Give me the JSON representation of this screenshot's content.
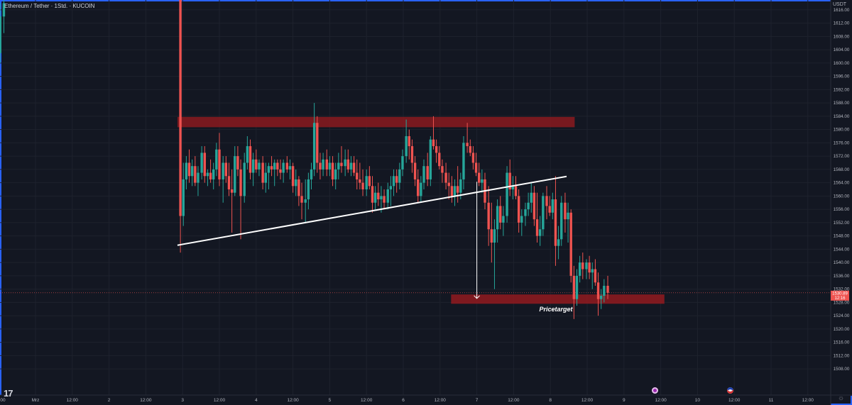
{
  "header": {
    "symbol_title": "Ethereum / Tether · 1Std. · KUCOIN",
    "currency_label": "USDT"
  },
  "price_axis": {
    "ticks": [
      "1616.00",
      "1612.00",
      "1608.00",
      "1604.00",
      "1600.00",
      "1596.00",
      "1592.00",
      "1588.00",
      "1584.00",
      "1580.00",
      "1576.00",
      "1572.00",
      "1568.00",
      "1564.00",
      "1560.00",
      "1556.00",
      "1552.00",
      "1548.00",
      "1544.00",
      "1540.00",
      "1536.00",
      "1532.00",
      "1528.00",
      "1524.00",
      "1520.00",
      "1516.00",
      "1512.00",
      "1508.00"
    ],
    "last_price_label": "1530.89",
    "countdown_label": "12:16"
  },
  "time_axis": {
    "ticks": [
      "00",
      "Mrz",
      "12:00",
      "2",
      "12:00",
      "3",
      "12:00",
      "4",
      "12:00",
      "5",
      "12:00",
      "6",
      "12:00",
      "7",
      "12:00",
      "8",
      "12:00",
      "9",
      "12:00",
      "10",
      "12:00",
      "11",
      "12:00"
    ]
  },
  "annotations": {
    "price_target_label": "Pricetarget"
  },
  "colors": {
    "background": "#131722",
    "grid": "#1e222d",
    "up": "#26a69a",
    "down": "#ef5350",
    "zone": "#8b1a1f",
    "trendline": "#ffffff"
  },
  "icons": {
    "logo": "tradingview-logo-icon",
    "indicator_a": "lightning-circle-icon",
    "indicator_b": "flag-circle-icon",
    "settings": "gear-icon"
  },
  "chart_data": {
    "type": "candlestick",
    "symbol": "ETHUSDT",
    "interval": "1h",
    "ylim": [
      1505,
      1619
    ],
    "resistance_zone": [
      1580.7,
      1583.8
    ],
    "target_zone": [
      1527.6,
      1530.4
    ],
    "trendline": [
      [
        2.93,
        1545.2
      ],
      [
        8.22,
        1565.9
      ]
    ],
    "projection": [
      [
        7.0,
        1564.3
      ],
      [
        7.0,
        1529.2
      ]
    ],
    "last_price": 1530.89,
    "candles": [
      {
        "t": 0.4,
        "o": 1605,
        "h": 1618,
        "l": 1597,
        "c": 1617
      },
      {
        "t": 0.44,
        "o": 1617,
        "h": 1619,
        "l": 1600,
        "c": 1605
      },
      {
        "t": 0.48,
        "o": 1611,
        "h": 1616,
        "l": 1596,
        "c": 1603
      },
      {
        "t": 0.52,
        "o": 1603,
        "h": 1618,
        "l": 1600,
        "c": 1614
      },
      {
        "t": 0.57,
        "o": 1614,
        "h": 1619,
        "l": 1609,
        "c": 1618
      },
      {
        "t": 2.97,
        "o": 1623,
        "h": 1625,
        "l": 1543,
        "c": 1554
      },
      {
        "t": 3.01,
        "o": 1554,
        "h": 1570,
        "l": 1551,
        "c": 1565
      },
      {
        "t": 3.05,
        "o": 1565,
        "h": 1572,
        "l": 1562,
        "c": 1570
      },
      {
        "t": 3.09,
        "o": 1570,
        "h": 1574,
        "l": 1564,
        "c": 1566
      },
      {
        "t": 3.13,
        "o": 1566,
        "h": 1571,
        "l": 1563,
        "c": 1569
      },
      {
        "t": 3.17,
        "o": 1569,
        "h": 1572,
        "l": 1563,
        "c": 1564
      },
      {
        "t": 3.21,
        "o": 1564,
        "h": 1569,
        "l": 1560,
        "c": 1567
      },
      {
        "t": 3.26,
        "o": 1567,
        "h": 1575,
        "l": 1565,
        "c": 1573
      },
      {
        "t": 3.3,
        "o": 1573,
        "h": 1575,
        "l": 1564,
        "c": 1566
      },
      {
        "t": 3.34,
        "o": 1566,
        "h": 1568,
        "l": 1563,
        "c": 1567
      },
      {
        "t": 3.38,
        "o": 1567,
        "h": 1571,
        "l": 1564,
        "c": 1565
      },
      {
        "t": 3.42,
        "o": 1565,
        "h": 1570,
        "l": 1562,
        "c": 1568
      },
      {
        "t": 3.46,
        "o": 1568,
        "h": 1576,
        "l": 1566,
        "c": 1574
      },
      {
        "t": 3.5,
        "o": 1574,
        "h": 1579,
        "l": 1563,
        "c": 1565
      },
      {
        "t": 3.55,
        "o": 1565,
        "h": 1572,
        "l": 1558,
        "c": 1570
      },
      {
        "t": 3.59,
        "o": 1570,
        "h": 1572,
        "l": 1564,
        "c": 1566
      },
      {
        "t": 3.63,
        "o": 1566,
        "h": 1570,
        "l": 1560,
        "c": 1562
      },
      {
        "t": 3.67,
        "o": 1562,
        "h": 1568,
        "l": 1549,
        "c": 1561
      },
      {
        "t": 3.71,
        "o": 1561,
        "h": 1575,
        "l": 1560,
        "c": 1572
      },
      {
        "t": 3.75,
        "o": 1572,
        "h": 1575,
        "l": 1566,
        "c": 1568
      },
      {
        "t": 3.79,
        "o": 1568,
        "h": 1571,
        "l": 1547,
        "c": 1560
      },
      {
        "t": 3.84,
        "o": 1560,
        "h": 1573,
        "l": 1558,
        "c": 1570
      },
      {
        "t": 3.88,
        "o": 1570,
        "h": 1578,
        "l": 1568,
        "c": 1575
      },
      {
        "t": 3.92,
        "o": 1575,
        "h": 1577,
        "l": 1565,
        "c": 1567
      },
      {
        "t": 3.96,
        "o": 1567,
        "h": 1573,
        "l": 1563,
        "c": 1571
      },
      {
        "t": 4.0,
        "o": 1571,
        "h": 1574,
        "l": 1567,
        "c": 1568
      },
      {
        "t": 4.04,
        "o": 1568,
        "h": 1571,
        "l": 1566,
        "c": 1570
      },
      {
        "t": 4.09,
        "o": 1570,
        "h": 1572,
        "l": 1562,
        "c": 1564
      },
      {
        "t": 4.13,
        "o": 1564,
        "h": 1570,
        "l": 1561,
        "c": 1567
      },
      {
        "t": 4.17,
        "o": 1567,
        "h": 1570,
        "l": 1562,
        "c": 1569
      },
      {
        "t": 4.21,
        "o": 1569,
        "h": 1572,
        "l": 1566,
        "c": 1568
      },
      {
        "t": 4.25,
        "o": 1568,
        "h": 1571,
        "l": 1563,
        "c": 1570
      },
      {
        "t": 4.29,
        "o": 1570,
        "h": 1571,
        "l": 1566,
        "c": 1568
      },
      {
        "t": 4.33,
        "o": 1568,
        "h": 1571,
        "l": 1565,
        "c": 1567
      },
      {
        "t": 4.37,
        "o": 1567,
        "h": 1571,
        "l": 1564,
        "c": 1570
      },
      {
        "t": 4.42,
        "o": 1570,
        "h": 1572,
        "l": 1567,
        "c": 1568
      },
      {
        "t": 4.46,
        "o": 1568,
        "h": 1571,
        "l": 1565,
        "c": 1569
      },
      {
        "t": 4.5,
        "o": 1569,
        "h": 1570,
        "l": 1561,
        "c": 1563
      },
      {
        "t": 4.54,
        "o": 1563,
        "h": 1568,
        "l": 1560,
        "c": 1565
      },
      {
        "t": 4.58,
        "o": 1565,
        "h": 1566,
        "l": 1557,
        "c": 1560
      },
      {
        "t": 4.62,
        "o": 1560,
        "h": 1564,
        "l": 1553,
        "c": 1558
      },
      {
        "t": 4.67,
        "o": 1558,
        "h": 1565,
        "l": 1552,
        "c": 1559
      },
      {
        "t": 4.71,
        "o": 1559,
        "h": 1567,
        "l": 1556,
        "c": 1565
      },
      {
        "t": 4.75,
        "o": 1565,
        "h": 1570,
        "l": 1562,
        "c": 1568
      },
      {
        "t": 4.79,
        "o": 1568,
        "h": 1588,
        "l": 1566,
        "c": 1582
      },
      {
        "t": 4.83,
        "o": 1582,
        "h": 1584,
        "l": 1567,
        "c": 1570
      },
      {
        "t": 4.87,
        "o": 1570,
        "h": 1573,
        "l": 1565,
        "c": 1568
      },
      {
        "t": 4.91,
        "o": 1568,
        "h": 1573,
        "l": 1566,
        "c": 1571
      },
      {
        "t": 4.96,
        "o": 1571,
        "h": 1574,
        "l": 1566,
        "c": 1568
      },
      {
        "t": 5.0,
        "o": 1568,
        "h": 1572,
        "l": 1566,
        "c": 1570
      },
      {
        "t": 5.04,
        "o": 1570,
        "h": 1572,
        "l": 1563,
        "c": 1565
      },
      {
        "t": 5.08,
        "o": 1565,
        "h": 1570,
        "l": 1562,
        "c": 1568
      },
      {
        "t": 5.12,
        "o": 1568,
        "h": 1573,
        "l": 1565,
        "c": 1570
      },
      {
        "t": 5.16,
        "o": 1570,
        "h": 1575,
        "l": 1567,
        "c": 1569
      },
      {
        "t": 5.21,
        "o": 1569,
        "h": 1574,
        "l": 1566,
        "c": 1571
      },
      {
        "t": 5.25,
        "o": 1571,
        "h": 1574,
        "l": 1567,
        "c": 1568
      },
      {
        "t": 5.29,
        "o": 1568,
        "h": 1572,
        "l": 1566,
        "c": 1570
      },
      {
        "t": 5.33,
        "o": 1570,
        "h": 1572,
        "l": 1566,
        "c": 1567
      },
      {
        "t": 5.37,
        "o": 1567,
        "h": 1571,
        "l": 1562,
        "c": 1565
      },
      {
        "t": 5.41,
        "o": 1565,
        "h": 1570,
        "l": 1562,
        "c": 1564
      },
      {
        "t": 5.45,
        "o": 1564,
        "h": 1568,
        "l": 1560,
        "c": 1562
      },
      {
        "t": 5.5,
        "o": 1562,
        "h": 1568,
        "l": 1560,
        "c": 1566
      },
      {
        "t": 5.54,
        "o": 1566,
        "h": 1569,
        "l": 1562,
        "c": 1563
      },
      {
        "t": 5.58,
        "o": 1563,
        "h": 1566,
        "l": 1555,
        "c": 1558
      },
      {
        "t": 5.62,
        "o": 1558,
        "h": 1563,
        "l": 1556,
        "c": 1561
      },
      {
        "t": 5.66,
        "o": 1561,
        "h": 1564,
        "l": 1557,
        "c": 1559
      },
      {
        "t": 5.7,
        "o": 1559,
        "h": 1563,
        "l": 1555,
        "c": 1560
      },
      {
        "t": 5.74,
        "o": 1560,
        "h": 1562,
        "l": 1556,
        "c": 1558
      },
      {
        "t": 5.79,
        "o": 1558,
        "h": 1564,
        "l": 1556,
        "c": 1562
      },
      {
        "t": 5.83,
        "o": 1562,
        "h": 1566,
        "l": 1557,
        "c": 1563
      },
      {
        "t": 5.87,
        "o": 1563,
        "h": 1568,
        "l": 1560,
        "c": 1566
      },
      {
        "t": 5.91,
        "o": 1566,
        "h": 1568,
        "l": 1561,
        "c": 1564
      },
      {
        "t": 5.95,
        "o": 1564,
        "h": 1570,
        "l": 1562,
        "c": 1568
      },
      {
        "t": 5.99,
        "o": 1568,
        "h": 1574,
        "l": 1566,
        "c": 1572
      },
      {
        "t": 6.04,
        "o": 1572,
        "h": 1583,
        "l": 1570,
        "c": 1578
      },
      {
        "t": 6.08,
        "o": 1578,
        "h": 1580,
        "l": 1571,
        "c": 1575
      },
      {
        "t": 6.12,
        "o": 1575,
        "h": 1577,
        "l": 1567,
        "c": 1570
      },
      {
        "t": 6.16,
        "o": 1570,
        "h": 1572,
        "l": 1563,
        "c": 1565
      },
      {
        "t": 6.2,
        "o": 1565,
        "h": 1568,
        "l": 1558,
        "c": 1560
      },
      {
        "t": 6.24,
        "o": 1560,
        "h": 1566,
        "l": 1558,
        "c": 1564
      },
      {
        "t": 6.28,
        "o": 1564,
        "h": 1571,
        "l": 1562,
        "c": 1569
      },
      {
        "t": 6.33,
        "o": 1569,
        "h": 1573,
        "l": 1563,
        "c": 1565
      },
      {
        "t": 6.37,
        "o": 1565,
        "h": 1578,
        "l": 1563,
        "c": 1577
      },
      {
        "t": 6.41,
        "o": 1577,
        "h": 1584,
        "l": 1574,
        "c": 1575
      },
      {
        "t": 6.45,
        "o": 1575,
        "h": 1577,
        "l": 1570,
        "c": 1573
      },
      {
        "t": 6.49,
        "o": 1573,
        "h": 1575,
        "l": 1568,
        "c": 1569
      },
      {
        "t": 6.53,
        "o": 1569,
        "h": 1571,
        "l": 1564,
        "c": 1567
      },
      {
        "t": 6.58,
        "o": 1567,
        "h": 1570,
        "l": 1562,
        "c": 1564
      },
      {
        "t": 6.62,
        "o": 1564,
        "h": 1567,
        "l": 1559,
        "c": 1563
      },
      {
        "t": 6.66,
        "o": 1563,
        "h": 1566,
        "l": 1558,
        "c": 1560
      },
      {
        "t": 6.7,
        "o": 1560,
        "h": 1565,
        "l": 1557,
        "c": 1563
      },
      {
        "t": 6.74,
        "o": 1563,
        "h": 1569,
        "l": 1558,
        "c": 1561
      },
      {
        "t": 6.78,
        "o": 1561,
        "h": 1567,
        "l": 1559,
        "c": 1565
      },
      {
        "t": 6.82,
        "o": 1565,
        "h": 1578,
        "l": 1562,
        "c": 1576
      },
      {
        "t": 6.87,
        "o": 1576,
        "h": 1582,
        "l": 1573,
        "c": 1575
      },
      {
        "t": 6.91,
        "o": 1575,
        "h": 1577,
        "l": 1572,
        "c": 1573
      },
      {
        "t": 6.95,
        "o": 1573,
        "h": 1575,
        "l": 1568,
        "c": 1570
      },
      {
        "t": 6.99,
        "o": 1570,
        "h": 1573,
        "l": 1566,
        "c": 1567
      },
      {
        "t": 7.03,
        "o": 1567,
        "h": 1570,
        "l": 1563,
        "c": 1564
      },
      {
        "t": 7.07,
        "o": 1564,
        "h": 1568,
        "l": 1561,
        "c": 1565
      },
      {
        "t": 7.11,
        "o": 1565,
        "h": 1567,
        "l": 1556,
        "c": 1558
      },
      {
        "t": 7.16,
        "o": 1558,
        "h": 1563,
        "l": 1545,
        "c": 1550
      },
      {
        "t": 7.2,
        "o": 1550,
        "h": 1558,
        "l": 1540,
        "c": 1546
      },
      {
        "t": 7.24,
        "o": 1546,
        "h": 1553,
        "l": 1532,
        "c": 1550
      },
      {
        "t": 7.28,
        "o": 1550,
        "h": 1559,
        "l": 1546,
        "c": 1557
      },
      {
        "t": 7.32,
        "o": 1557,
        "h": 1560,
        "l": 1550,
        "c": 1552
      },
      {
        "t": 7.36,
        "o": 1552,
        "h": 1557,
        "l": 1548,
        "c": 1554
      },
      {
        "t": 7.41,
        "o": 1554,
        "h": 1569,
        "l": 1552,
        "c": 1567
      },
      {
        "t": 7.45,
        "o": 1567,
        "h": 1571,
        "l": 1560,
        "c": 1562
      },
      {
        "t": 7.49,
        "o": 1562,
        "h": 1566,
        "l": 1559,
        "c": 1563
      },
      {
        "t": 7.53,
        "o": 1563,
        "h": 1566,
        "l": 1559,
        "c": 1560
      },
      {
        "t": 7.57,
        "o": 1560,
        "h": 1562,
        "l": 1549,
        "c": 1552
      },
      {
        "t": 7.61,
        "o": 1552,
        "h": 1556,
        "l": 1548,
        "c": 1554
      },
      {
        "t": 7.66,
        "o": 1554,
        "h": 1558,
        "l": 1551,
        "c": 1556
      },
      {
        "t": 7.7,
        "o": 1556,
        "h": 1561,
        "l": 1554,
        "c": 1558
      },
      {
        "t": 7.74,
        "o": 1558,
        "h": 1564,
        "l": 1555,
        "c": 1561
      },
      {
        "t": 7.78,
        "o": 1561,
        "h": 1563,
        "l": 1551,
        "c": 1553
      },
      {
        "t": 7.82,
        "o": 1553,
        "h": 1561,
        "l": 1546,
        "c": 1548
      },
      {
        "t": 7.86,
        "o": 1548,
        "h": 1554,
        "l": 1545,
        "c": 1550
      },
      {
        "t": 7.9,
        "o": 1550,
        "h": 1561,
        "l": 1548,
        "c": 1560
      },
      {
        "t": 7.95,
        "o": 1560,
        "h": 1563,
        "l": 1553,
        "c": 1557
      },
      {
        "t": 7.99,
        "o": 1557,
        "h": 1560,
        "l": 1554,
        "c": 1555
      },
      {
        "t": 8.03,
        "o": 1555,
        "h": 1561,
        "l": 1553,
        "c": 1559
      },
      {
        "t": 8.07,
        "o": 1559,
        "h": 1566,
        "l": 1539,
        "c": 1545
      },
      {
        "t": 8.11,
        "o": 1545,
        "h": 1551,
        "l": 1541,
        "c": 1547
      },
      {
        "t": 8.15,
        "o": 1547,
        "h": 1560,
        "l": 1545,
        "c": 1558
      },
      {
        "t": 8.2,
        "o": 1558,
        "h": 1561,
        "l": 1549,
        "c": 1553
      },
      {
        "t": 8.24,
        "o": 1553,
        "h": 1558,
        "l": 1546,
        "c": 1555
      },
      {
        "t": 8.28,
        "o": 1555,
        "h": 1556,
        "l": 1534,
        "c": 1536
      },
      {
        "t": 8.32,
        "o": 1536,
        "h": 1539,
        "l": 1523,
        "c": 1529
      },
      {
        "t": 8.36,
        "o": 1529,
        "h": 1538,
        "l": 1527,
        "c": 1536
      },
      {
        "t": 8.4,
        "o": 1536,
        "h": 1542,
        "l": 1534,
        "c": 1540
      },
      {
        "t": 8.44,
        "o": 1540,
        "h": 1543,
        "l": 1535,
        "c": 1538
      },
      {
        "t": 8.49,
        "o": 1538,
        "h": 1541,
        "l": 1535,
        "c": 1540
      },
      {
        "t": 8.53,
        "o": 1540,
        "h": 1542,
        "l": 1535,
        "c": 1537
      },
      {
        "t": 8.57,
        "o": 1537,
        "h": 1540,
        "l": 1532,
        "c": 1538
      },
      {
        "t": 8.61,
        "o": 1538,
        "h": 1541,
        "l": 1533,
        "c": 1534
      },
      {
        "t": 8.65,
        "o": 1534,
        "h": 1537,
        "l": 1524,
        "c": 1529
      },
      {
        "t": 8.69,
        "o": 1529,
        "h": 1532,
        "l": 1526,
        "c": 1530
      },
      {
        "t": 8.73,
        "o": 1530,
        "h": 1535,
        "l": 1528,
        "c": 1533
      },
      {
        "t": 8.78,
        "o": 1533,
        "h": 1536,
        "l": 1529,
        "c": 1530.89
      }
    ]
  }
}
